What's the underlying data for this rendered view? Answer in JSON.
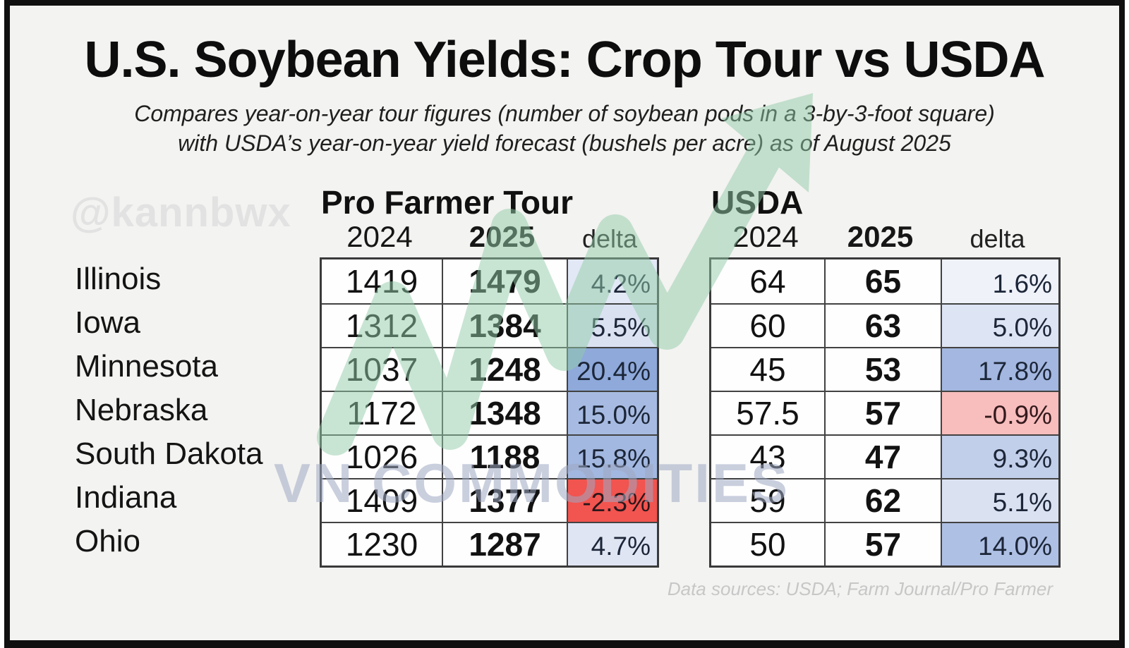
{
  "title": "U.S. Soybean Yields: Crop Tour vs USDA",
  "subtitle_line1": "Compares year-on-year tour figures (number of soybean pods in a 3-by-3-foot square)",
  "subtitle_line2": "with USDA’s year-on-year yield forecast (bushels per acre) as of August 2025",
  "watermarks": {
    "handle": "@kannbwx",
    "brand": "VN COMMODITIES"
  },
  "footer": "Data sources: USDA; Farm Journal/Pro Farmer",
  "accent_colors": {
    "arrow_green": "#92cba8",
    "negative_red": "#f2544f",
    "negative_pink": "#f8bdbd",
    "positive_blue_strong": "#8ea9da"
  },
  "chart_data": {
    "type": "table",
    "states": [
      "Illinois",
      "Iowa",
      "Minnesota",
      "Nebraska",
      "South Dakota",
      "Indiana",
      "Ohio"
    ],
    "tables": [
      {
        "name": "Pro Farmer Tour",
        "unit": "soybean pods in a 3-by-3-foot square",
        "columns": [
          "2024",
          "2025",
          "delta"
        ],
        "rows": [
          {
            "state": "Illinois",
            "y2024": "1419",
            "y2025": "1479",
            "delta": "4.2%",
            "delta_bg": "#e2e8f5"
          },
          {
            "state": "Iowa",
            "y2024": "1312",
            "y2025": "1384",
            "delta": "5.5%",
            "delta_bg": "#dae2f2"
          },
          {
            "state": "Minnesota",
            "y2024": "1037",
            "y2025": "1248",
            "delta": "20.4%",
            "delta_bg": "#8ea9da"
          },
          {
            "state": "Nebraska",
            "y2024": "1172",
            "y2025": "1348",
            "delta": "15.0%",
            "delta_bg": "#a7bbe2"
          },
          {
            "state": "South Dakota",
            "y2024": "1026",
            "y2025": "1188",
            "delta": "15.8%",
            "delta_bg": "#a3b8e0"
          },
          {
            "state": "Indiana",
            "y2024": "1409",
            "y2025": "1377",
            "delta": "-2.3%",
            "delta_bg": "#f2544f",
            "delta_color": "#2a171b"
          },
          {
            "state": "Ohio",
            "y2024": "1230",
            "y2025": "1287",
            "delta": "4.7%",
            "delta_bg": "#dfe5f3"
          }
        ]
      },
      {
        "name": "USDA",
        "unit": "bushels per acre",
        "columns": [
          "2024",
          "2025",
          "delta"
        ],
        "rows": [
          {
            "state": "Illinois",
            "y2024": "64",
            "y2025": "65",
            "delta": "1.6%",
            "delta_bg": "#eff2f9"
          },
          {
            "state": "Iowa",
            "y2024": "60",
            "y2025": "63",
            "delta": "5.0%",
            "delta_bg": "#dde4f3"
          },
          {
            "state": "Minnesota",
            "y2024": "45",
            "y2025": "53",
            "delta": "17.8%",
            "delta_bg": "#a3b7e0"
          },
          {
            "state": "Nebraska",
            "y2024": "57.5",
            "y2025": "57",
            "delta": "-0.9%",
            "delta_bg": "#f8bdbd",
            "delta_color": "#33191c"
          },
          {
            "state": "South Dakota",
            "y2024": "43",
            "y2025": "47",
            "delta": "9.3%",
            "delta_bg": "#c2cfeb"
          },
          {
            "state": "Indiana",
            "y2024": "59",
            "y2025": "62",
            "delta": "5.1%",
            "delta_bg": "#dae2f2"
          },
          {
            "state": "Ohio",
            "y2024": "50",
            "y2025": "57",
            "delta": "14.0%",
            "delta_bg": "#afc0e5"
          }
        ]
      }
    ]
  }
}
